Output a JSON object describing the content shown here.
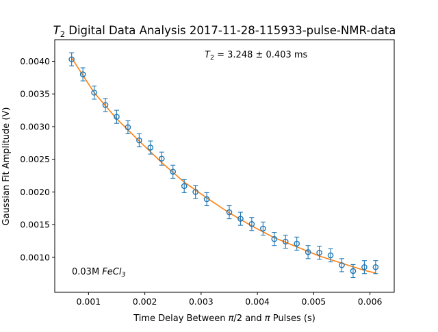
{
  "chart_data": {
    "type": "scatter",
    "title_prefix": "T",
    "title_sub": "2",
    "title_rest": " Digital Data Analysis 2017-11-28-115933-pulse-NMR-data",
    "xlabel_parts": [
      "Time Delay Between ",
      "π",
      "/2 and ",
      "π",
      " Pulses (s)"
    ],
    "ylabel": "Gaussian Fit Amplitude (V)",
    "annotation": {
      "prefix": "T",
      "sub": "2",
      "rest": " = 3.248 ± 0.403 ms"
    },
    "sample_label": {
      "prefix": "0.03M ",
      "italic": "FeCl",
      "sub": "3"
    },
    "xlim": [
      0.0004,
      0.00643
    ],
    "ylim": [
      0.000465,
      0.00433
    ],
    "x_ticks": [
      0.001,
      0.002,
      0.003,
      0.004,
      0.005,
      0.006
    ],
    "x_tick_labels": [
      "0.001",
      "0.002",
      "0.003",
      "0.004",
      "0.005",
      "0.006"
    ],
    "y_ticks": [
      0.001,
      0.0015,
      0.002,
      0.0025,
      0.003,
      0.0035,
      0.004
    ],
    "y_tick_labels": [
      "0.0010",
      "0.0015",
      "0.0020",
      "0.0025",
      "0.0030",
      "0.0035",
      "0.0040"
    ],
    "grid": false,
    "series": [
      {
        "kind": "data_with_errorbars",
        "color": "#1f77b4",
        "x": [
          0.0007,
          0.0009,
          0.0011,
          0.0013,
          0.0015,
          0.0017,
          0.0019,
          0.0021,
          0.0023,
          0.0025,
          0.0027,
          0.0029,
          0.0031,
          0.0035,
          0.0037,
          0.0039,
          0.0041,
          0.0043,
          0.0045,
          0.0047,
          0.0049,
          0.0051,
          0.0053,
          0.0055,
          0.0057,
          0.0059,
          0.0061
        ],
        "y": [
          0.00403,
          0.0038,
          0.00352,
          0.00333,
          0.00315,
          0.00299,
          0.00279,
          0.00268,
          0.00251,
          0.00231,
          0.00209,
          0.002,
          0.00189,
          0.00169,
          0.00159,
          0.00151,
          0.00144,
          0.00128,
          0.00124,
          0.00121,
          0.00108,
          0.00107,
          0.00103,
          0.00088,
          0.00079,
          0.00085,
          0.00085
        ],
        "error": 0.0001
      },
      {
        "kind": "fit",
        "color": "#ff7f0e",
        "x": [
          0.0007,
          0.0011,
          0.0015,
          0.0019,
          0.0023,
          0.0027,
          0.0031,
          0.0035,
          0.0039,
          0.0043,
          0.0047,
          0.0051,
          0.0055,
          0.0059,
          0.0061
        ],
        "y": [
          0.00405,
          0.00352,
          0.00312,
          0.00278,
          0.00245,
          0.00215,
          0.00191,
          0.00168,
          0.00148,
          0.0013,
          0.00116,
          0.00102,
          0.00091,
          0.0008,
          0.00076
        ]
      }
    ]
  }
}
